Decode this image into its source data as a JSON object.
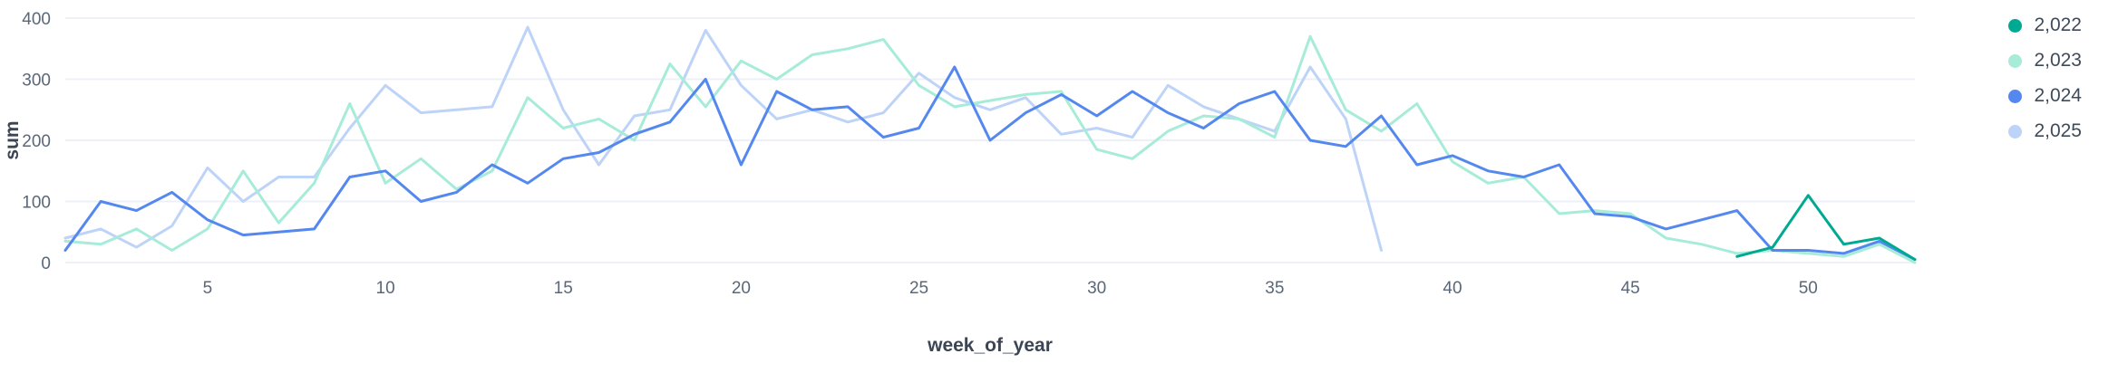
{
  "chart_data": {
    "type": "line",
    "title": "",
    "xlabel": "week_of_year",
    "ylabel": "sum",
    "xlim": [
      1,
      53
    ],
    "ylim": [
      0,
      400
    ],
    "yticks": [
      0,
      100,
      200,
      300,
      400
    ],
    "xticks": [
      5,
      10,
      15,
      20,
      25,
      30,
      35,
      40,
      45,
      50
    ],
    "grid": "horizontal",
    "legend_position": "top-right",
    "draw_order": [
      "2,025",
      "2,023",
      "2,024",
      "2,022"
    ],
    "series": [
      {
        "name": "2,022",
        "color": "#00a991",
        "x": [
          48,
          49,
          50,
          51,
          52,
          53
        ],
        "values": [
          10,
          25,
          110,
          30,
          40,
          5
        ]
      },
      {
        "name": "2,023",
        "color": "#a7ebd9",
        "x": [
          1,
          2,
          3,
          4,
          5,
          6,
          7,
          8,
          9,
          10,
          11,
          12,
          13,
          14,
          15,
          16,
          17,
          18,
          19,
          20,
          21,
          22,
          23,
          24,
          25,
          26,
          27,
          28,
          29,
          30,
          31,
          32,
          33,
          34,
          35,
          36,
          37,
          38,
          39,
          40,
          41,
          42,
          43,
          44,
          45,
          46,
          47,
          48,
          49,
          50,
          51,
          52,
          53
        ],
        "values": [
          35,
          30,
          55,
          20,
          55,
          150,
          65,
          130,
          260,
          130,
          170,
          120,
          150,
          270,
          220,
          235,
          200,
          325,
          255,
          330,
          300,
          340,
          350,
          365,
          290,
          255,
          265,
          275,
          280,
          185,
          170,
          215,
          240,
          235,
          205,
          370,
          250,
          215,
          260,
          165,
          130,
          140,
          80,
          85,
          80,
          40,
          30,
          15,
          20,
          15,
          10,
          30,
          0
        ]
      },
      {
        "name": "2,024",
        "color": "#5588ee",
        "x": [
          1,
          2,
          3,
          4,
          5,
          6,
          7,
          8,
          9,
          10,
          11,
          12,
          13,
          14,
          15,
          16,
          17,
          18,
          19,
          20,
          21,
          22,
          23,
          24,
          25,
          26,
          27,
          28,
          29,
          30,
          31,
          32,
          33,
          34,
          35,
          36,
          37,
          38,
          39,
          40,
          41,
          42,
          43,
          44,
          45,
          46,
          47,
          48,
          49,
          50,
          51,
          52,
          53
        ],
        "values": [
          20,
          100,
          85,
          115,
          70,
          45,
          50,
          55,
          140,
          150,
          100,
          115,
          160,
          130,
          170,
          180,
          210,
          230,
          300,
          160,
          280,
          250,
          255,
          205,
          220,
          320,
          200,
          245,
          275,
          240,
          280,
          245,
          220,
          260,
          280,
          200,
          190,
          240,
          160,
          175,
          150,
          140,
          160,
          80,
          75,
          55,
          70,
          85,
          20,
          20,
          15,
          35,
          5
        ]
      },
      {
        "name": "2,025",
        "color": "#bed3f8",
        "x": [
          1,
          2,
          3,
          4,
          5,
          6,
          7,
          8,
          9,
          10,
          11,
          12,
          13,
          14,
          15,
          16,
          17,
          18,
          19,
          20,
          21,
          22,
          23,
          24,
          25,
          26,
          27,
          28,
          29,
          30,
          31,
          32,
          33,
          34,
          35,
          36,
          37,
          38
        ],
        "values": [
          40,
          55,
          25,
          60,
          155,
          100,
          140,
          140,
          220,
          290,
          245,
          250,
          255,
          385,
          250,
          160,
          240,
          250,
          380,
          290,
          235,
          250,
          230,
          245,
          310,
          270,
          250,
          270,
          210,
          220,
          205,
          290,
          255,
          235,
          215,
          320,
          235,
          20
        ]
      }
    ]
  }
}
